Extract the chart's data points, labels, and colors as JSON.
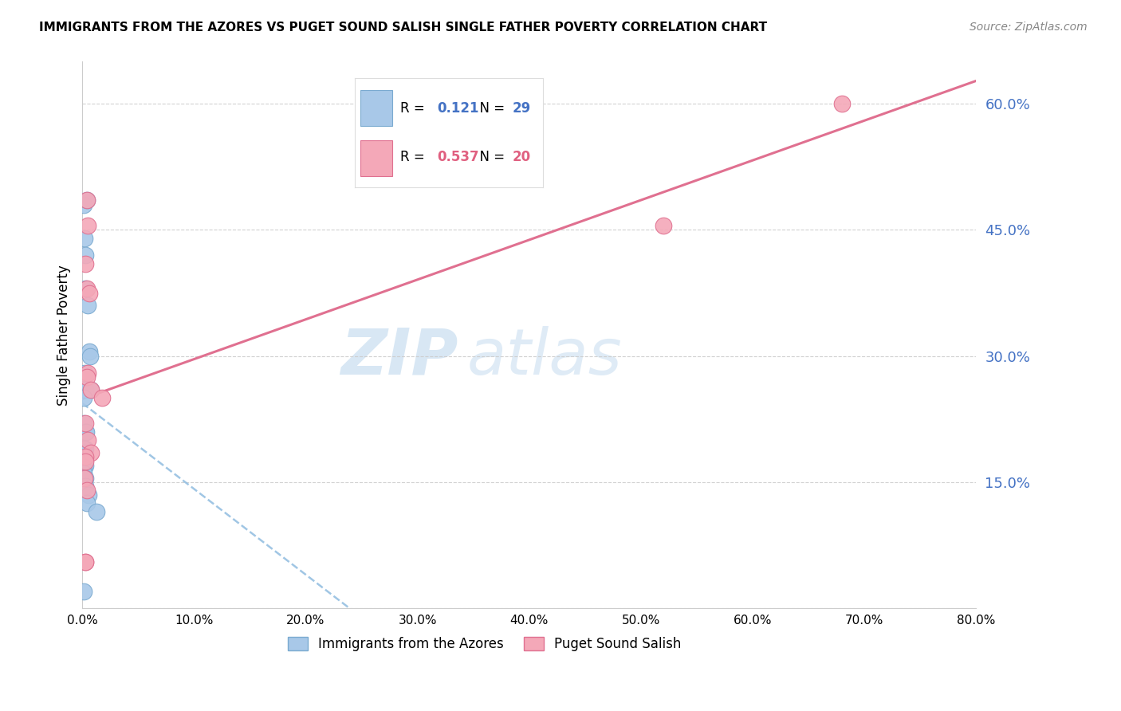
{
  "title": "IMMIGRANTS FROM THE AZORES VS PUGET SOUND SALISH SINGLE FATHER POVERTY CORRELATION CHART",
  "source": "Source: ZipAtlas.com",
  "ylabel": "Single Father Poverty",
  "legend_label1": "Immigrants from the Azores",
  "legend_label2": "Puget Sound Salish",
  "R1": 0.121,
  "N1": 29,
  "R2": 0.537,
  "N2": 20,
  "color1": "#a8c8e8",
  "color1_edge": "#7aaad0",
  "color2": "#f4a8b8",
  "color2_edge": "#e07090",
  "trendline1_color": "#90bce0",
  "trendline2_color": "#e07090",
  "xlim": [
    0.0,
    80.0
  ],
  "ylim": [
    0.0,
    65.0
  ],
  "ytick_vals": [
    0.0,
    15.0,
    30.0,
    45.0,
    60.0
  ],
  "xtick_vals": [
    0.0,
    10.0,
    20.0,
    30.0,
    40.0,
    50.0,
    60.0,
    70.0,
    80.0
  ],
  "background_color": "#ffffff",
  "watermark_zip": "ZIP",
  "watermark_atlas": "atlas",
  "blue_x": [
    0.1,
    0.4,
    0.2,
    0.3,
    0.3,
    0.5,
    0.6,
    0.7,
    0.2,
    0.25,
    0.8,
    0.1,
    0.15,
    0.25,
    0.35,
    0.15,
    0.25,
    0.1,
    0.15,
    0.2,
    0.25,
    0.1,
    0.15,
    0.25,
    0.3,
    0.55,
    0.4,
    1.3,
    0.1
  ],
  "blue_y": [
    48.0,
    48.5,
    44.0,
    42.0,
    38.0,
    36.0,
    30.5,
    30.0,
    28.0,
    26.0,
    26.0,
    25.0,
    22.0,
    21.0,
    21.0,
    19.0,
    19.0,
    19.0,
    18.5,
    17.5,
    17.0,
    16.5,
    16.0,
    15.5,
    14.5,
    13.5,
    12.5,
    11.5,
    2.0
  ],
  "pink_x": [
    0.4,
    0.5,
    0.3,
    0.4,
    0.6,
    0.5,
    0.4,
    0.8,
    1.8,
    0.3,
    0.5,
    0.8,
    0.3,
    0.3,
    0.2,
    0.4,
    0.3,
    52.0,
    68.0,
    0.3
  ],
  "pink_y": [
    48.5,
    45.5,
    41.0,
    38.0,
    37.5,
    28.0,
    27.5,
    26.0,
    25.0,
    22.0,
    20.0,
    18.5,
    18.0,
    17.5,
    15.5,
    14.0,
    5.5,
    45.5,
    60.0,
    5.5
  ],
  "trendline1_x_start": 0.0,
  "trendline1_x_end": 80.0,
  "trendline2_x_start": 0.0,
  "trendline2_x_end": 80.0
}
